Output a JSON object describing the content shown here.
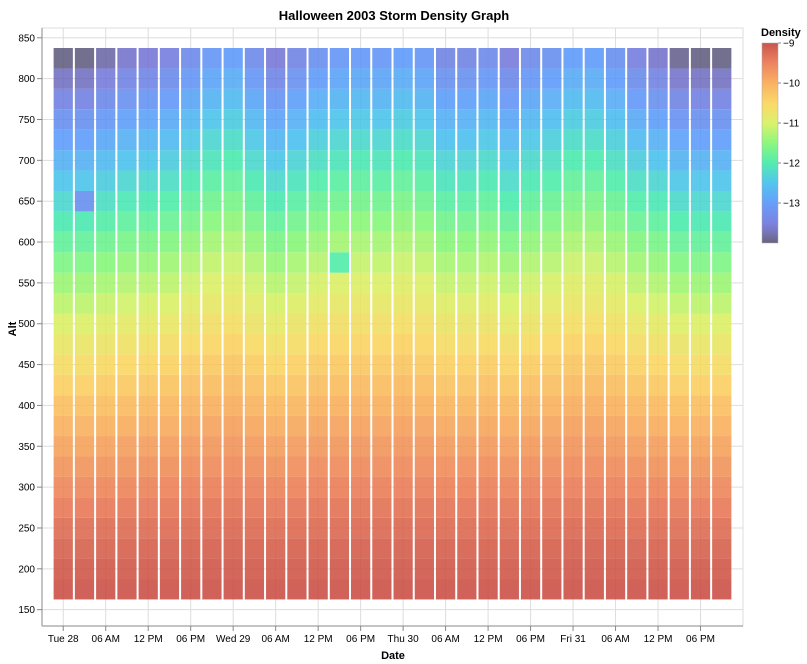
{
  "chart_data": {
    "type": "heatmap",
    "title": "Halloween 2003 Storm Density Graph",
    "xlabel": "Date",
    "ylabel": "Alt",
    "x_tick_labels": [
      "Tue 28",
      "06 AM",
      "12 PM",
      "06 PM",
      "Wed 29",
      "06 AM",
      "12 PM",
      "06 PM",
      "Thu 30",
      "06 AM",
      "12 PM",
      "06 PM",
      "Fri 31",
      "06 AM",
      "12 PM",
      "06 PM"
    ],
    "x_range": [
      "2003-10-27T21:00",
      "2003-11-01T00:00"
    ],
    "time_columns": [
      "2003-10-28T00:00",
      "2003-10-28T03:00",
      "2003-10-28T06:00",
      "2003-10-28T09:00",
      "2003-10-28T12:00",
      "2003-10-28T15:00",
      "2003-10-28T18:00",
      "2003-10-28T21:00",
      "2003-10-29T00:00",
      "2003-10-29T03:00",
      "2003-10-29T06:00",
      "2003-10-29T09:00",
      "2003-10-29T12:00",
      "2003-10-29T15:00",
      "2003-10-29T18:00",
      "2003-10-29T21:00",
      "2003-10-30T00:00",
      "2003-10-30T03:00",
      "2003-10-30T06:00",
      "2003-10-30T09:00",
      "2003-10-30T12:00",
      "2003-10-30T15:00",
      "2003-10-30T18:00",
      "2003-10-30T21:00",
      "2003-10-31T00:00",
      "2003-10-31T03:00",
      "2003-10-31T06:00",
      "2003-10-31T09:00",
      "2003-10-31T12:00",
      "2003-10-31T15:00",
      "2003-10-31T18:00",
      "2003-10-31T21:00"
    ],
    "y_ticks": [
      150,
      200,
      250,
      300,
      350,
      400,
      450,
      500,
      550,
      600,
      650,
      700,
      750,
      800,
      850
    ],
    "ylim": [
      130,
      862
    ],
    "altitude_bins": [
      175,
      200,
      225,
      250,
      275,
      300,
      325,
      350,
      375,
      400,
      425,
      450,
      475,
      500,
      525,
      550,
      575,
      600,
      625,
      650,
      675,
      700,
      725,
      750,
      775,
      800,
      825
    ],
    "density_bottom": -9.05,
    "density_top_profile": [
      -13.95,
      -13.95,
      -13.8,
      -13.65,
      -13.6,
      -13.5,
      -13.3,
      -13.1,
      -13.0,
      -13.3,
      -13.6,
      -13.4,
      -13.2,
      -13.1,
      -13.05,
      -13.1,
      -13.0,
      -13.1,
      -13.4,
      -13.4,
      -13.3,
      -13.55,
      -13.3,
      -13.2,
      -13.0,
      -13.0,
      -13.2,
      -13.5,
      -13.65,
      -13.9,
      -13.95,
      -13.95
    ],
    "anomalies": [
      {
        "time": "2003-10-28T03:00",
        "alt": 650,
        "density": -13.2
      },
      {
        "time": "2003-10-29T15:00",
        "alt": 575,
        "density": -11.95
      }
    ],
    "legend": {
      "title": "Density",
      "ticks": [
        -9,
        -10,
        -11,
        -12,
        -13
      ],
      "domain": [
        -14,
        -9
      ]
    },
    "grid": true,
    "legend_position": "top-right"
  }
}
